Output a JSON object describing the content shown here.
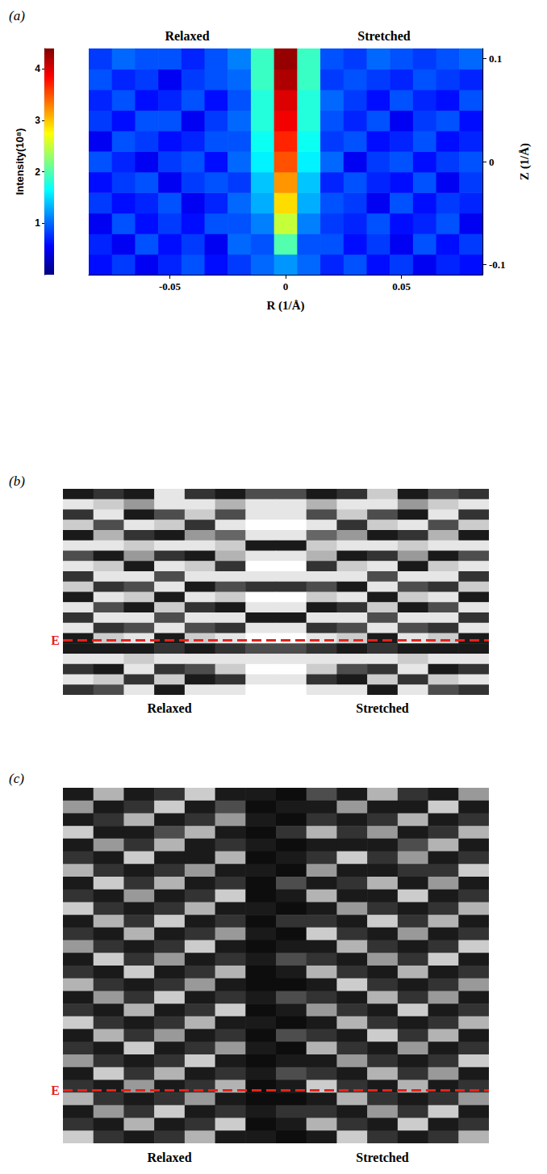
{
  "chart_data": [
    {
      "type": "heatmap",
      "title": "(a)",
      "x_label": "R (1/Å)",
      "y_label": "Z (1/Å)",
      "annotations": [
        "Relaxed",
        "Stretched"
      ],
      "x": [
        -0.08,
        -0.07,
        -0.06,
        -0.05,
        -0.04,
        -0.03,
        -0.02,
        -0.01,
        0,
        0.01,
        0.02,
        0.03,
        0.04,
        0.05,
        0.06,
        0.07,
        0.08
      ],
      "y": [
        -0.1,
        -0.08,
        -0.06,
        -0.04,
        -0.02,
        0,
        0.02,
        0.04,
        0.06,
        0.08,
        0.1
      ],
      "cells": [
        [
          0.6,
          0.8,
          0.5,
          0.7,
          0.9,
          0.6,
          0.8,
          1.0,
          1.2,
          1.0,
          0.7,
          0.9,
          0.6,
          0.8,
          0.5,
          0.7,
          0.6
        ],
        [
          0.7,
          0.5,
          0.9,
          0.6,
          0.8,
          0.5,
          1.0,
          0.9,
          2.0,
          0.9,
          0.9,
          0.6,
          0.8,
          0.5,
          0.9,
          0.6,
          0.8
        ],
        [
          0.5,
          0.9,
          0.6,
          0.8,
          0.6,
          0.9,
          0.9,
          1.1,
          2.5,
          1.1,
          0.8,
          0.7,
          0.9,
          0.6,
          0.7,
          0.9,
          0.5
        ],
        [
          0.8,
          0.6,
          0.7,
          0.9,
          0.5,
          0.7,
          1.0,
          1.3,
          2.9,
          1.3,
          0.9,
          0.8,
          0.5,
          0.9,
          0.6,
          0.8,
          0.7
        ],
        [
          0.6,
          0.8,
          0.9,
          0.5,
          0.8,
          0.9,
          0.8,
          1.4,
          3.2,
          1.4,
          0.7,
          0.9,
          0.7,
          0.6,
          0.9,
          0.5,
          0.8
        ],
        [
          0.9,
          0.7,
          0.5,
          0.8,
          0.9,
          0.6,
          1.0,
          1.6,
          3.5,
          1.6,
          1.0,
          0.5,
          0.8,
          0.9,
          0.6,
          0.8,
          0.9
        ],
        [
          0.5,
          0.9,
          0.8,
          0.6,
          0.7,
          0.9,
          0.9,
          1.7,
          3.7,
          1.7,
          0.8,
          0.9,
          0.6,
          0.7,
          0.9,
          0.6,
          0.7
        ],
        [
          0.8,
          0.6,
          0.9,
          0.9,
          0.5,
          0.8,
          1.0,
          1.8,
          3.9,
          1.8,
          0.9,
          0.7,
          0.9,
          0.5,
          0.8,
          0.9,
          0.6
        ],
        [
          0.7,
          0.9,
          0.6,
          0.7,
          0.9,
          0.6,
          0.9,
          1.8,
          4.0,
          1.8,
          1.0,
          0.8,
          0.6,
          0.9,
          0.7,
          0.6,
          0.9
        ],
        [
          0.9,
          0.7,
          0.8,
          0.5,
          0.8,
          0.9,
          1.0,
          1.9,
          4.2,
          1.9,
          0.8,
          0.9,
          0.8,
          0.7,
          0.9,
          0.8,
          0.7
        ],
        [
          0.8,
          1.0,
          0.9,
          0.9,
          0.7,
          0.9,
          1.1,
          1.9,
          4.3,
          1.9,
          0.9,
          0.8,
          1.0,
          0.9,
          0.8,
          0.9,
          1.0
        ]
      ],
      "xlim": [
        -0.085,
        0.085
      ],
      "xticks": [
        -0.05,
        0,
        0.05
      ],
      "ylim": [
        -0.11,
        0.11
      ],
      "yticks": [
        -0.1,
        0,
        0.1
      ],
      "colorbar": {
        "label": "Intensity(10⁸)",
        "range": [
          0,
          4.4
        ],
        "ticks": [
          1,
          2,
          3,
          4
        ]
      }
    },
    {
      "type": "heatmap",
      "title": "(b)",
      "annotations": [
        "Relaxed",
        "Stretched"
      ],
      "tick_labels": false,
      "xlim": [
        0,
        14
      ],
      "ylim": [
        0,
        20
      ],
      "gray_range": [
        0,
        1
      ],
      "marker_line": {
        "label": "E",
        "y": 5.3,
        "color": "#e3231c"
      },
      "cells": [
        [
          0.1,
          0.2,
          0.1,
          0.9,
          0.2,
          0.1,
          0.3,
          0.3,
          0.1,
          0.2,
          0.8,
          0.1,
          0.3,
          0.2
        ],
        [
          0.9,
          0.8,
          0.6,
          0.9,
          0.9,
          0.7,
          0.9,
          0.9,
          0.7,
          0.9,
          0.9,
          0.6,
          0.8,
          0.9
        ],
        [
          0.2,
          0.9,
          0.1,
          0.3,
          0.8,
          0.3,
          0.9,
          0.9,
          0.3,
          0.8,
          0.3,
          0.1,
          0.9,
          0.2
        ],
        [
          0.8,
          0.3,
          0.9,
          0.8,
          0.2,
          0.9,
          1.0,
          1.0,
          0.9,
          0.2,
          0.8,
          0.9,
          0.3,
          0.8
        ],
        [
          0.1,
          0.7,
          0.2,
          0.1,
          0.6,
          0.4,
          0.9,
          0.9,
          0.4,
          0.6,
          0.1,
          0.2,
          0.7,
          0.1
        ],
        [
          0.9,
          0.9,
          0.8,
          0.9,
          0.9,
          0.8,
          0.1,
          0.1,
          0.8,
          0.9,
          0.9,
          0.8,
          0.9,
          0.9
        ],
        [
          0.3,
          0.1,
          0.6,
          0.2,
          0.1,
          0.7,
          0.9,
          0.9,
          0.7,
          0.1,
          0.2,
          0.6,
          0.1,
          0.3
        ],
        [
          0.9,
          0.8,
          0.1,
          0.9,
          0.8,
          0.2,
          1.0,
          1.0,
          0.2,
          0.8,
          0.9,
          0.1,
          0.8,
          0.9
        ],
        [
          0.2,
          0.9,
          0.9,
          0.3,
          0.9,
          0.9,
          0.9,
          0.9,
          0.9,
          0.9,
          0.3,
          0.9,
          0.9,
          0.2
        ],
        [
          0.8,
          0.2,
          0.3,
          0.9,
          0.1,
          0.3,
          0.2,
          0.2,
          0.3,
          0.1,
          0.9,
          0.3,
          0.2,
          0.8
        ],
        [
          0.1,
          0.9,
          0.8,
          0.1,
          0.9,
          0.8,
          1.0,
          1.0,
          0.8,
          0.9,
          0.1,
          0.8,
          0.9,
          0.1
        ],
        [
          0.9,
          0.3,
          0.1,
          0.8,
          0.2,
          0.1,
          0.9,
          0.9,
          0.1,
          0.2,
          0.8,
          0.1,
          0.3,
          0.9
        ],
        [
          0.2,
          0.9,
          0.9,
          0.3,
          0.9,
          0.9,
          0.1,
          0.1,
          0.9,
          0.9,
          0.3,
          0.9,
          0.9,
          0.2
        ],
        [
          0.9,
          0.2,
          0.3,
          0.9,
          0.3,
          0.2,
          0.9,
          0.9,
          0.2,
          0.3,
          0.9,
          0.3,
          0.2,
          0.9
        ],
        [
          0.1,
          0.8,
          0.9,
          0.1,
          0.8,
          0.9,
          1.0,
          1.0,
          0.9,
          0.8,
          0.1,
          0.9,
          0.8,
          0.1
        ],
        [
          0.1,
          0.1,
          0.1,
          0.2,
          0.1,
          0.2,
          0.3,
          0.3,
          0.2,
          0.1,
          0.2,
          0.1,
          0.1,
          0.1
        ],
        [
          0.9,
          0.9,
          0.8,
          0.9,
          0.9,
          0.9,
          0.9,
          0.9,
          0.9,
          0.9,
          0.9,
          0.8,
          0.9,
          0.9
        ],
        [
          0.2,
          0.1,
          0.9,
          0.2,
          0.3,
          0.8,
          1.0,
          1.0,
          0.8,
          0.3,
          0.2,
          0.9,
          0.1,
          0.2
        ],
        [
          0.9,
          0.8,
          0.2,
          0.8,
          0.1,
          0.2,
          0.9,
          0.9,
          0.2,
          0.1,
          0.8,
          0.2,
          0.8,
          0.9
        ],
        [
          0.2,
          0.3,
          0.9,
          0.1,
          0.9,
          0.9,
          1.0,
          1.0,
          0.9,
          0.9,
          0.1,
          0.9,
          0.3,
          0.2
        ]
      ]
    },
    {
      "type": "heatmap",
      "title": "(c)",
      "annotations": [
        "Relaxed",
        "Stretched"
      ],
      "tick_labels": false,
      "xlim": [
        0,
        14
      ],
      "ylim": [
        0,
        28
      ],
      "gray_range": [
        0,
        1
      ],
      "marker_line": {
        "label": "E",
        "y": 4.2,
        "color": "#e3231c"
      },
      "cells": [
        [
          0.1,
          0.7,
          0.1,
          0.2,
          0.8,
          0.1,
          0.1,
          0.05,
          0.3,
          0.1,
          0.7,
          0.2,
          0.1,
          0.6
        ],
        [
          0.6,
          0.1,
          0.2,
          0.8,
          0.1,
          0.3,
          0.05,
          0.1,
          0.1,
          0.6,
          0.1,
          0.1,
          0.8,
          0.1
        ],
        [
          0.1,
          0.2,
          0.7,
          0.1,
          0.2,
          0.6,
          0.1,
          0.05,
          0.2,
          0.1,
          0.2,
          0.7,
          0.1,
          0.2
        ],
        [
          0.8,
          0.1,
          0.1,
          0.3,
          0.7,
          0.1,
          0.05,
          0.2,
          0.7,
          0.2,
          0.6,
          0.1,
          0.2,
          0.7
        ],
        [
          0.1,
          0.6,
          0.2,
          0.7,
          0.1,
          0.2,
          0.1,
          0.05,
          0.1,
          0.1,
          0.1,
          0.3,
          0.7,
          0.1
        ],
        [
          0.2,
          0.1,
          0.8,
          0.1,
          0.1,
          0.7,
          0.05,
          0.1,
          0.2,
          0.8,
          0.2,
          0.6,
          0.1,
          0.2
        ],
        [
          0.7,
          0.2,
          0.1,
          0.2,
          0.6,
          0.1,
          0.1,
          0.05,
          0.6,
          0.1,
          0.1,
          0.2,
          0.2,
          0.8
        ],
        [
          0.1,
          0.8,
          0.2,
          0.7,
          0.1,
          0.2,
          0.05,
          0.3,
          0.1,
          0.2,
          0.7,
          0.1,
          0.6,
          0.1
        ],
        [
          0.2,
          0.1,
          0.6,
          0.1,
          0.2,
          0.8,
          0.05,
          0.1,
          0.7,
          0.1,
          0.1,
          0.8,
          0.1,
          0.2
        ],
        [
          0.8,
          0.2,
          0.1,
          0.2,
          0.7,
          0.1,
          0.1,
          0.05,
          0.1,
          0.6,
          0.2,
          0.1,
          0.2,
          0.7
        ],
        [
          0.1,
          0.7,
          0.2,
          0.8,
          0.1,
          0.2,
          0.05,
          0.2,
          0.2,
          0.1,
          0.8,
          0.2,
          0.7,
          0.1
        ],
        [
          0.2,
          0.1,
          0.7,
          0.1,
          0.2,
          0.6,
          0.1,
          0.05,
          0.8,
          0.2,
          0.1,
          0.6,
          0.1,
          0.2
        ],
        [
          0.6,
          0.2,
          0.1,
          0.2,
          0.8,
          0.1,
          0.05,
          0.1,
          0.1,
          0.7,
          0.2,
          0.1,
          0.2,
          0.8
        ],
        [
          0.1,
          0.8,
          0.2,
          0.6,
          0.1,
          0.2,
          0.1,
          0.3,
          0.2,
          0.1,
          0.6,
          0.2,
          0.8,
          0.1
        ],
        [
          0.2,
          0.1,
          0.8,
          0.1,
          0.2,
          0.7,
          0.05,
          0.1,
          0.7,
          0.2,
          0.1,
          0.7,
          0.1,
          0.2
        ],
        [
          0.7,
          0.2,
          0.1,
          0.2,
          0.6,
          0.1,
          0.05,
          0.05,
          0.1,
          0.8,
          0.2,
          0.1,
          0.2,
          0.6
        ],
        [
          0.1,
          0.6,
          0.2,
          0.8,
          0.1,
          0.2,
          0.1,
          0.3,
          0.2,
          0.1,
          0.7,
          0.2,
          0.6,
          0.1
        ],
        [
          0.2,
          0.1,
          0.7,
          0.1,
          0.2,
          0.8,
          0.05,
          0.1,
          0.6,
          0.2,
          0.1,
          0.8,
          0.1,
          0.2
        ],
        [
          0.8,
          0.2,
          0.1,
          0.2,
          0.7,
          0.1,
          0.1,
          0.05,
          0.1,
          0.7,
          0.2,
          0.1,
          0.2,
          0.7
        ],
        [
          0.1,
          0.7,
          0.2,
          0.6,
          0.1,
          0.2,
          0.05,
          0.3,
          0.2,
          0.1,
          0.8,
          0.2,
          0.7,
          0.1
        ],
        [
          0.2,
          0.1,
          0.8,
          0.1,
          0.2,
          0.6,
          0.1,
          0.05,
          0.7,
          0.2,
          0.1,
          0.6,
          0.1,
          0.2
        ],
        [
          0.6,
          0.2,
          0.1,
          0.2,
          0.8,
          0.1,
          0.05,
          0.1,
          0.1,
          0.6,
          0.2,
          0.1,
          0.2,
          0.8
        ],
        [
          0.1,
          0.8,
          0.2,
          0.7,
          0.1,
          0.2,
          0.1,
          0.3,
          0.2,
          0.1,
          0.7,
          0.2,
          0.6,
          0.1
        ],
        [
          0.2,
          0.1,
          0.6,
          0.1,
          0.2,
          0.7,
          0.05,
          0.1,
          0.8,
          0.2,
          0.1,
          0.7,
          0.1,
          0.2
        ],
        [
          0.7,
          0.2,
          0.1,
          0.2,
          0.6,
          0.1,
          0.05,
          0.05,
          0.1,
          0.7,
          0.2,
          0.1,
          0.2,
          0.6
        ],
        [
          0.1,
          0.6,
          0.2,
          0.8,
          0.1,
          0.2,
          0.1,
          0.2,
          0.2,
          0.1,
          0.6,
          0.2,
          0.8,
          0.1
        ],
        [
          0.2,
          0.1,
          0.7,
          0.1,
          0.2,
          0.8,
          0.05,
          0.1,
          0.7,
          0.2,
          0.1,
          0.8,
          0.1,
          0.2
        ],
        [
          0.8,
          0.2,
          0.1,
          0.2,
          0.7,
          0.1,
          0.1,
          0.05,
          0.1,
          0.8,
          0.2,
          0.1,
          0.2,
          0.7
        ]
      ]
    }
  ]
}
